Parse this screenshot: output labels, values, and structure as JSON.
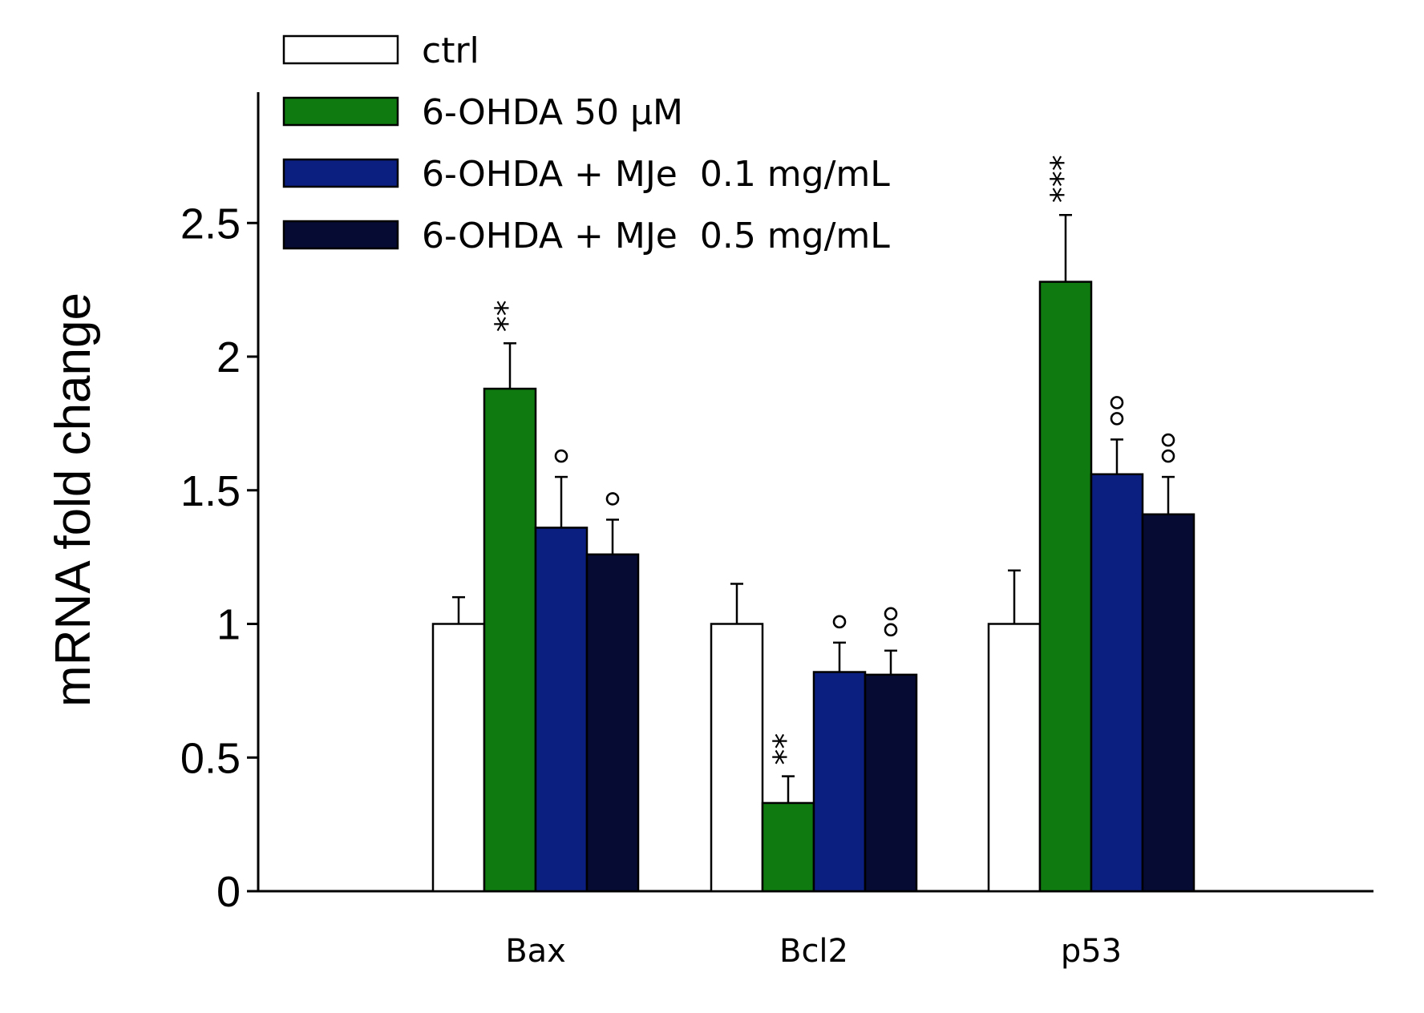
{
  "chart_data": {
    "type": "bar",
    "title": "",
    "xlabel": "",
    "ylabel": "mRNA fold change",
    "ylim": [
      0,
      3.0
    ],
    "yticks": [
      0,
      0.5,
      1,
      1.5,
      2,
      2.5
    ],
    "ytick_labels": [
      "0",
      "0.5",
      "1",
      "1.5",
      "2",
      "2.5"
    ],
    "categories": [
      "Bax",
      "Bcl2",
      "p53"
    ],
    "legend_position": "top-left",
    "series": [
      {
        "name": "ctrl",
        "color": "#ffffff",
        "values": [
          1.0,
          1.0,
          1.0
        ],
        "errors": [
          0.1,
          0.15,
          0.2
        ],
        "annotations": [
          "",
          "",
          ""
        ]
      },
      {
        "name": "6-OHDA 50 μM",
        "color": "#0f7a0f",
        "values": [
          1.88,
          0.33,
          2.28
        ],
        "errors": [
          0.17,
          0.1,
          0.25
        ],
        "annotations": [
          "**",
          "**",
          "***"
        ]
      },
      {
        "name": "6-OHDA + MJe  0.1 mg/mL",
        "color": "#0a1f80",
        "values": [
          1.36,
          0.82,
          1.56
        ],
        "errors": [
          0.19,
          0.11,
          0.13
        ],
        "annotations": [
          "°",
          "°",
          "°°"
        ]
      },
      {
        "name": "6-OHDA + MJe  0.5 mg/mL",
        "color": "#050b33",
        "values": [
          1.26,
          0.81,
          1.41
        ],
        "errors": [
          0.13,
          0.09,
          0.14
        ],
        "annotations": [
          "°",
          "°°",
          "°°"
        ]
      }
    ]
  }
}
